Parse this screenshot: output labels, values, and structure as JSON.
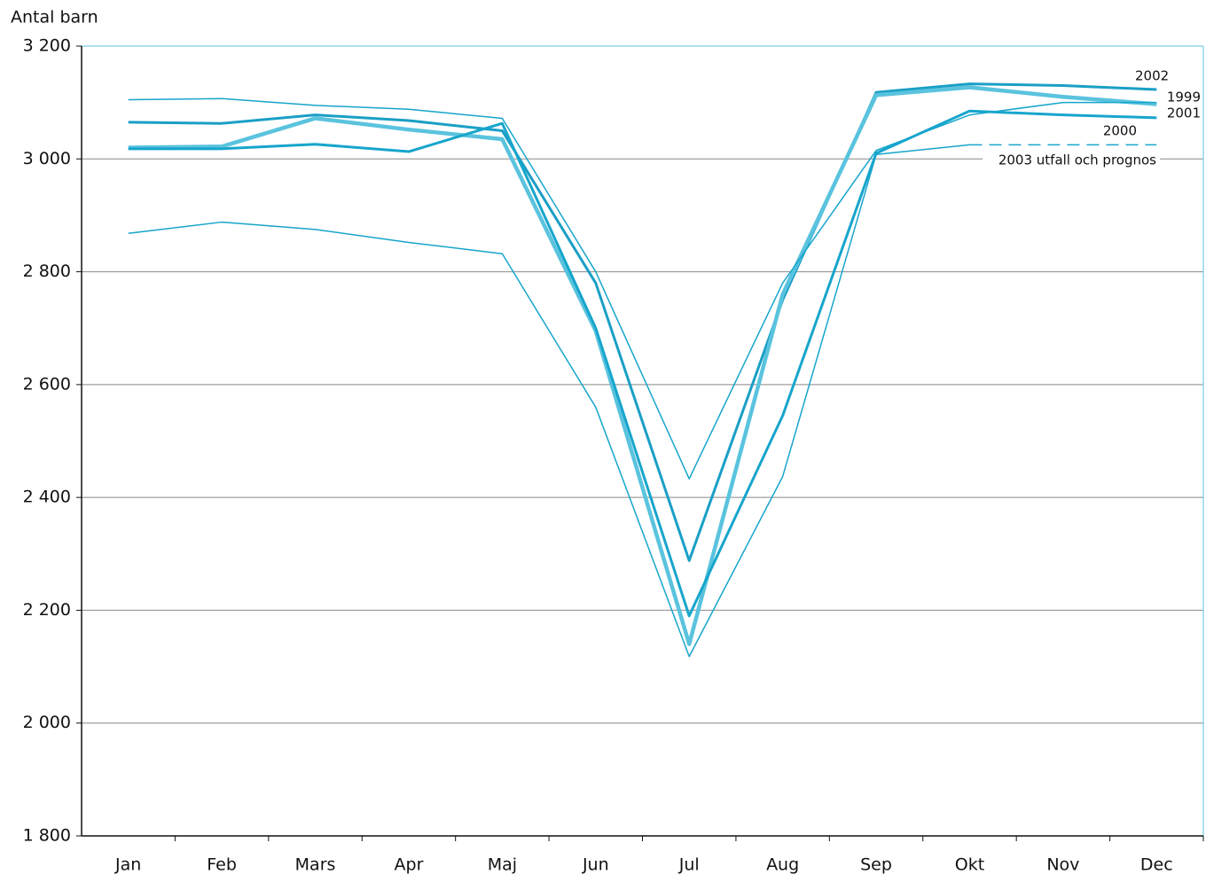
{
  "chart_data": {
    "type": "line",
    "y_axis_label": "Antal barn",
    "categories": [
      "Jan",
      "Feb",
      "Mars",
      "Apr",
      "Maj",
      "Jun",
      "Jul",
      "Aug",
      "Sep",
      "Okt",
      "Nov",
      "Dec"
    ],
    "series": [
      {
        "name": "2002",
        "color": "#1a9fc6",
        "width": 3,
        "values": [
          3065,
          3063,
          3078,
          3068,
          3050,
          2780,
          2288,
          2750,
          3118,
          3133,
          3130,
          3123
        ]
      },
      {
        "name": "1999",
        "color": "#5ac3de",
        "width": 4.5,
        "values": [
          3020,
          3022,
          3072,
          3052,
          3035,
          2695,
          2140,
          2760,
          3113,
          3127,
          3110,
          3097
        ]
      },
      {
        "name": "2001",
        "color": "#17a5cc",
        "width": 3,
        "values": [
          3018,
          3018,
          3026,
          3013,
          3063,
          2700,
          2190,
          2545,
          3010,
          3085,
          3078,
          3073
        ]
      },
      {
        "name": "2000",
        "color": "#17a5cc",
        "width": 1.5,
        "values": [
          3105,
          3107,
          3095,
          3088,
          3072,
          2800,
          2433,
          2780,
          3015,
          3078,
          3100,
          3100
        ]
      },
      {
        "name": "2003 utfall och prognos",
        "color": "#17a5cc",
        "width": 1.5,
        "dashed_after": "Okt",
        "values": [
          2868,
          2888,
          2875,
          2852,
          2832,
          2560,
          2118,
          2437,
          3008,
          3025,
          3025,
          3025
        ]
      }
    ],
    "ylim": [
      1800,
      3200
    ],
    "yticks": [
      {
        "value": 1800,
        "label": "1 800"
      },
      {
        "value": 2000,
        "label": "2 000"
      },
      {
        "value": 2200,
        "label": "2 200"
      },
      {
        "value": 2400,
        "label": "2 400"
      },
      {
        "value": 2600,
        "label": "2 600"
      },
      {
        "value": 2800,
        "label": "2 800"
      },
      {
        "value": 3000,
        "label": "3 000"
      },
      {
        "value": 3200,
        "label": "3 200"
      }
    ],
    "grid": true
  }
}
